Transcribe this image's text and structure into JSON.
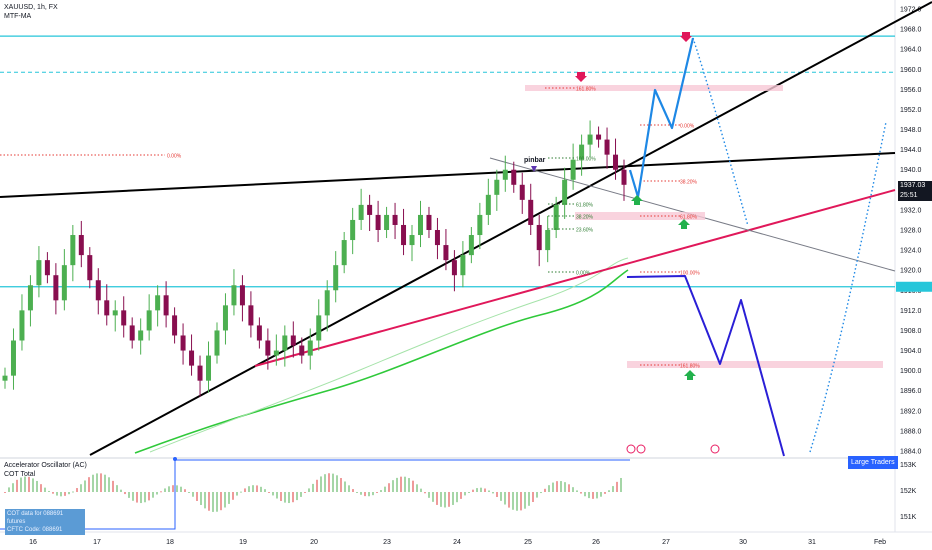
{
  "window": {
    "symbol": "XAUUSD, 1h, FX",
    "indicator": "MTF-MA"
  },
  "price_tag": {
    "price": "1937.03",
    "countdown": "25:51"
  },
  "oscillator": {
    "title": "Accelerator Oscillator (AC)",
    "subtitle": "COT Total",
    "badge": "Large Traders",
    "cot_note_1": "COT data for 088691 futures",
    "cot_note_2": "CFTC Code: 088691",
    "scale": [
      "153K",
      "152K",
      "151K"
    ]
  },
  "annotations": {
    "pinbar": "pinbar",
    "fib_left": "0.00%",
    "fib_top": "161.80%",
    "fib_0": "0.00%",
    "fib_100": "100.00%",
    "fib_618_a": "61.80%",
    "fib_382_a": "38.20%",
    "fib_236_a": "23.60%",
    "fib_0_b": "0.00%",
    "fib_382_b": "38.20%",
    "fib_618_b": "61.80%",
    "fib_100_b": "100.00%",
    "fib_1618_b": "161.80%"
  },
  "colors": {
    "bull": "#4caf50",
    "bear": "#880e4f",
    "cyan": "#26c6da",
    "blue_path": "#1e88e5",
    "navy_path": "#2a1fd6",
    "pink": "#e91e63",
    "green_ma": "#2fc93a"
  },
  "chart_data": {
    "type": "candlestick",
    "y_axis": {
      "min": 1884,
      "max": 1972,
      "ticks": [
        1972.0,
        1968.0,
        1964.0,
        1960.0,
        1956.0,
        1952.0,
        1948.0,
        1944.0,
        1940.0,
        1932.0,
        1928.0,
        1924.0,
        1920.0,
        1916.0,
        1912.0,
        1908.0,
        1904.0,
        1900.0,
        1896.0,
        1892.0,
        1888.0,
        1884.0
      ]
    },
    "x_axis": {
      "ticks": [
        "16",
        "17",
        "18",
        "19",
        "20",
        "23",
        "24",
        "25",
        "26",
        "27",
        "30",
        "31",
        "Feb"
      ]
    },
    "current_price": 1937.03,
    "horizontal_levels": [
      1966.6,
      1959.4,
      1916.7
    ],
    "series_closes": [
      1899,
      1906,
      1912,
      1917,
      1922,
      1919,
      1914,
      1921,
      1927,
      1923,
      1918,
      1914,
      1911,
      1912,
      1909,
      1906,
      1908,
      1912,
      1915,
      1911,
      1907,
      1904,
      1901,
      1898,
      1903,
      1908,
      1913,
      1917,
      1913,
      1909,
      1906,
      1903,
      1904,
      1907,
      1905,
      1903,
      1906,
      1911,
      1916,
      1921,
      1926,
      1930,
      1933,
      1931,
      1928,
      1931,
      1929,
      1925,
      1927,
      1931,
      1928,
      1925,
      1922,
      1919,
      1923,
      1927,
      1931,
      1935,
      1938,
      1940,
      1937,
      1934,
      1929,
      1924,
      1928,
      1933,
      1938,
      1942,
      1945,
      1947,
      1946,
      1943,
      1940,
      1937
    ]
  }
}
